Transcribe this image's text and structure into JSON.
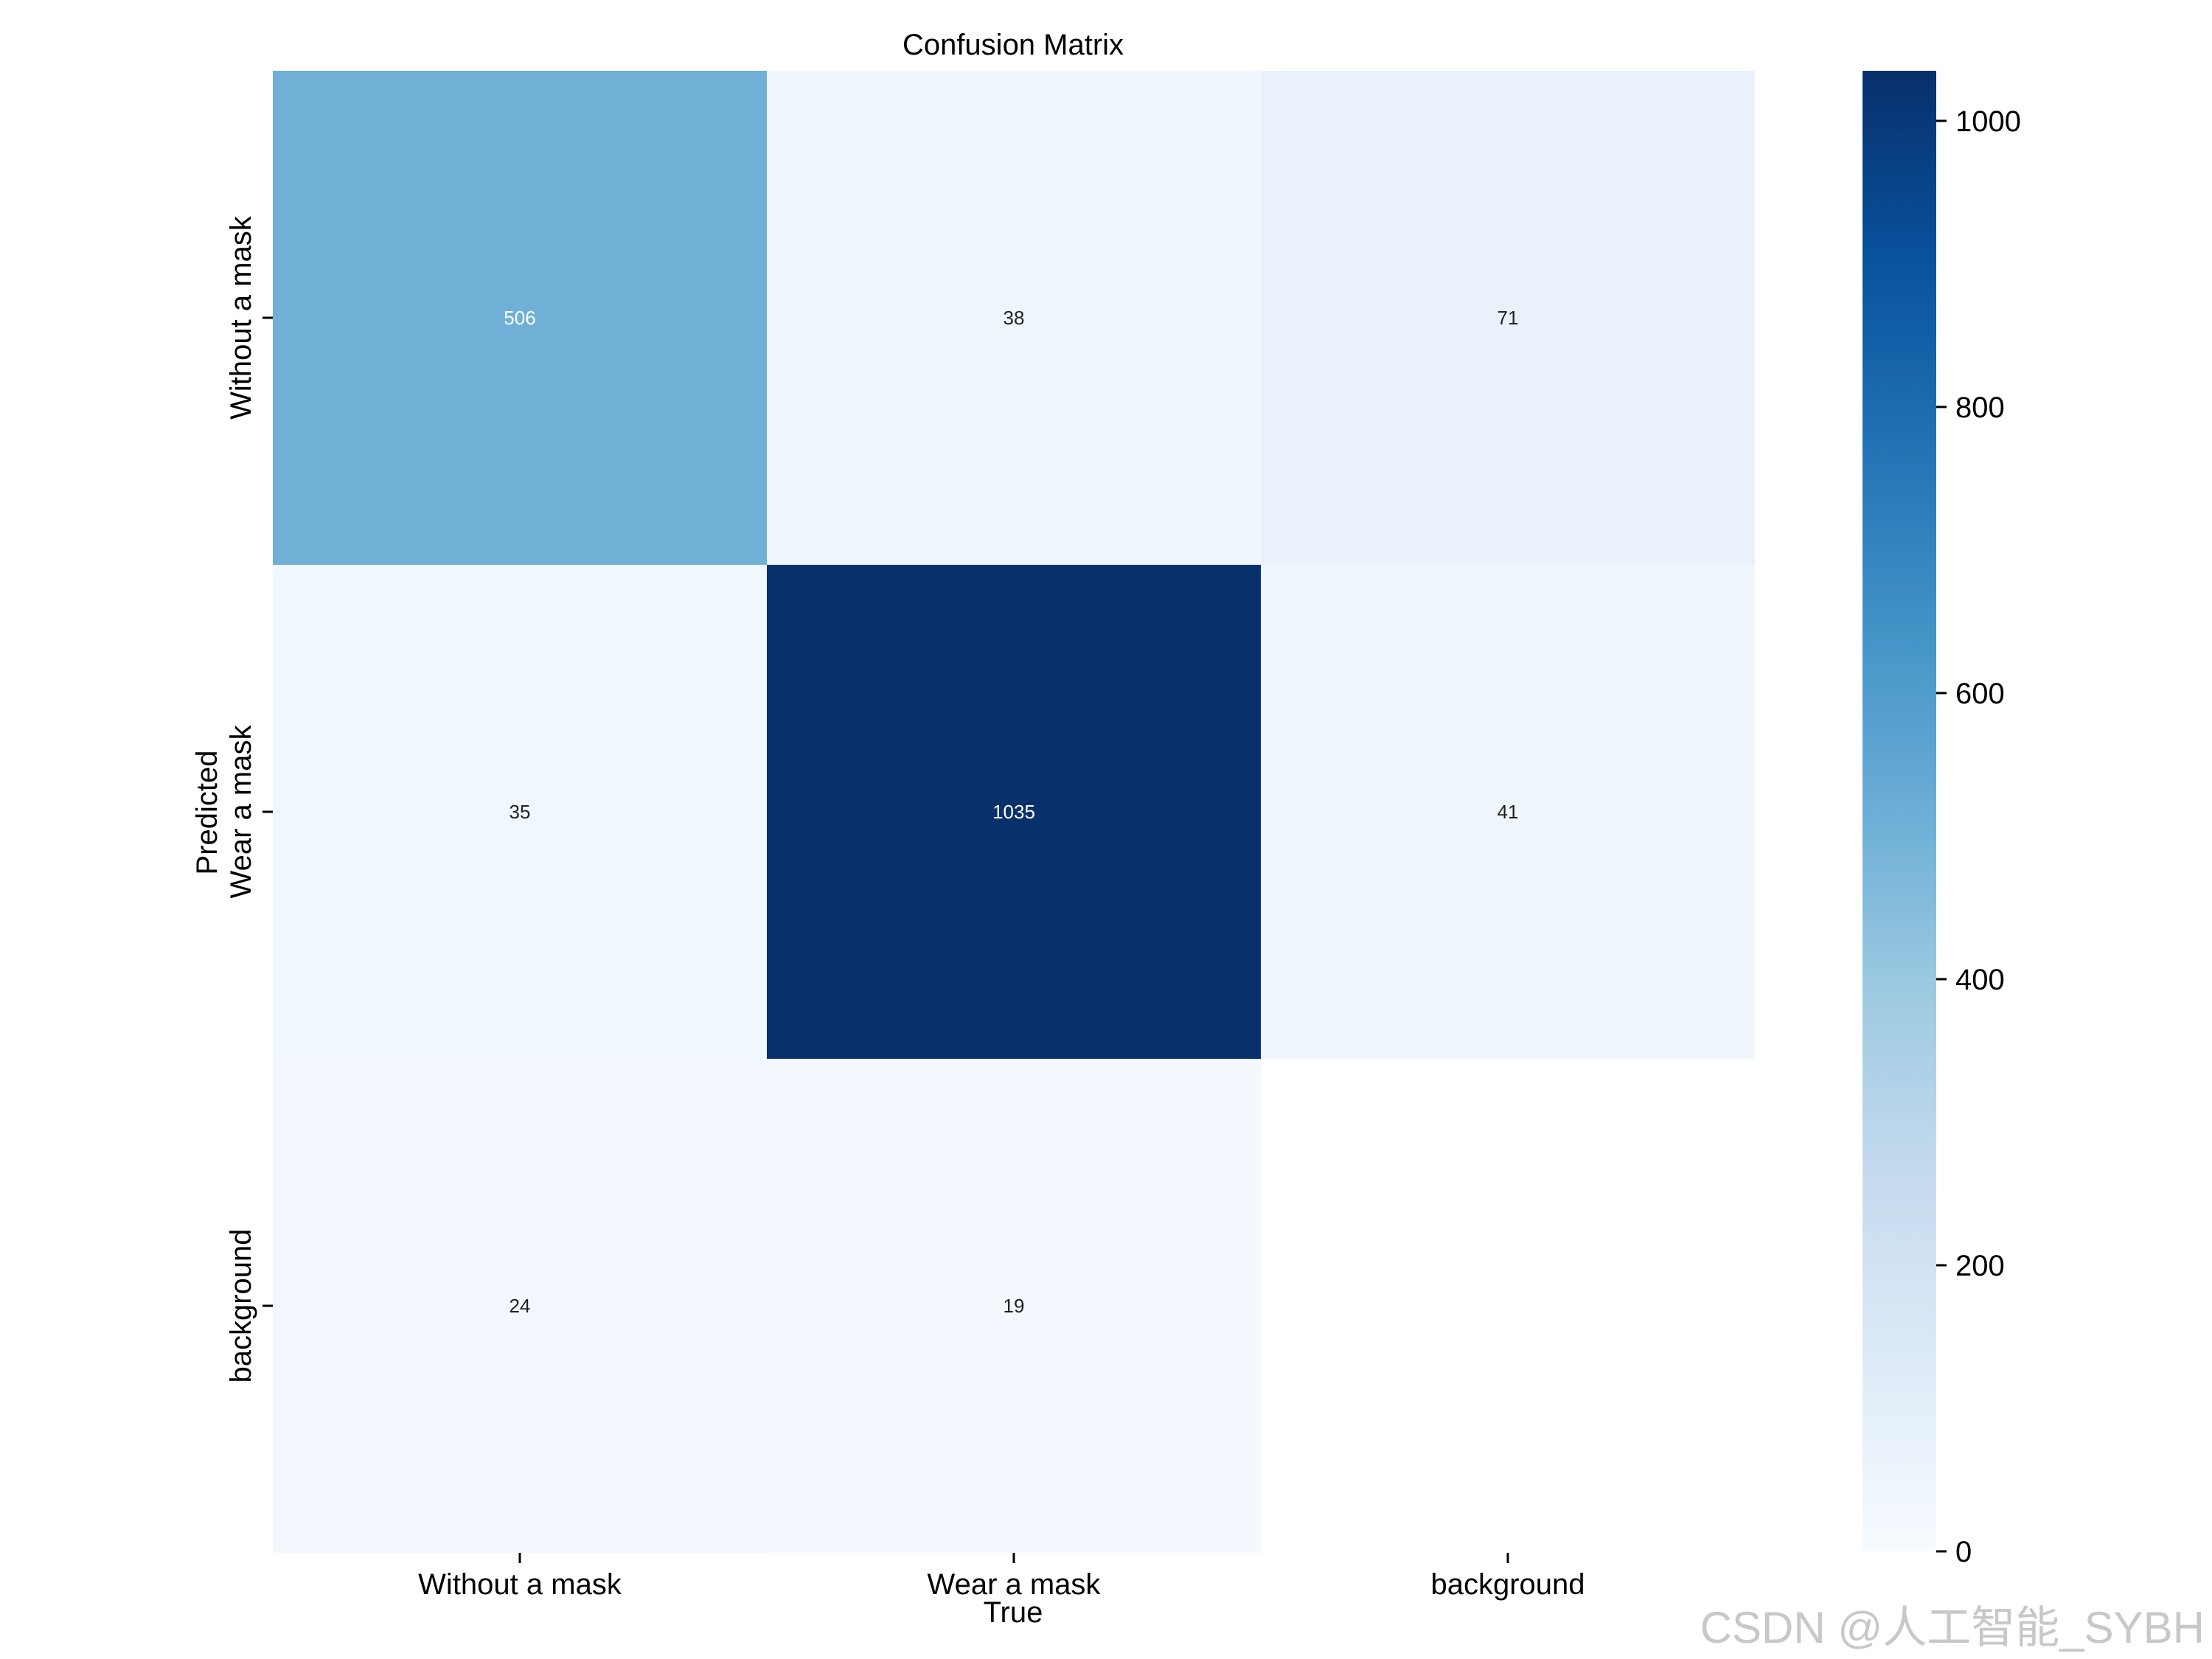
{
  "chart_data": {
    "type": "heatmap",
    "title": "Confusion Matrix",
    "xlabel": "True",
    "ylabel": "Predicted",
    "x_categories": [
      "Without a mask",
      "Wear a mask",
      "background"
    ],
    "y_categories": [
      "Without a mask",
      "Wear a mask",
      "background"
    ],
    "values": [
      [
        506,
        38,
        71
      ],
      [
        35,
        1035,
        41
      ],
      [
        24,
        19,
        null
      ]
    ],
    "colormap": "Blues",
    "colorbar": {
      "range": [
        0,
        1035
      ],
      "ticks": [
        0,
        200,
        400,
        600,
        800,
        1000
      ],
      "tick_labels": [
        "0",
        "200",
        "400",
        "600",
        "800",
        "1000"
      ]
    },
    "grid": false
  },
  "watermark": "CSDN @人工智能_SYBH"
}
